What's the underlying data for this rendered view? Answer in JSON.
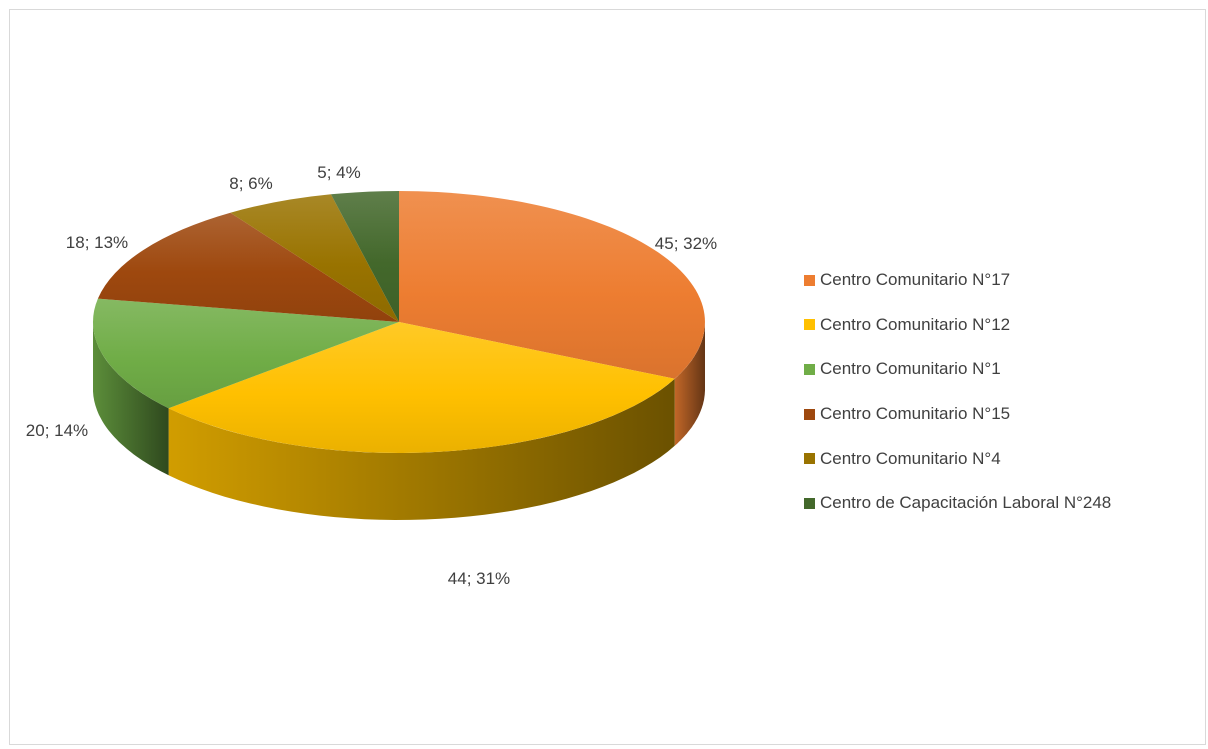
{
  "chart_data": {
    "type": "pie",
    "style": "3d",
    "title": "",
    "legend_position": "right",
    "categories": [
      "Centro Comunitario N°17",
      "Centro Comunitario N°12",
      "Centro Comunitario N°1",
      "Centro Comunitario N°15",
      "Centro Comunitario N°4",
      "Centro de Capacitación Laboral N°248"
    ],
    "values": [
      45,
      44,
      20,
      18,
      8,
      5
    ],
    "percentages": [
      "32%",
      "31%",
      "14%",
      "13%",
      "6%",
      "4%"
    ],
    "data_labels": [
      "45; 32%",
      "44; 31%",
      "20; 14%",
      "18; 13%",
      "8; 6%",
      "5; 4%"
    ],
    "colors": [
      "#ED7D31",
      "#FFC000",
      "#70AD47",
      "#9E480E",
      "#997300",
      "#43682B"
    ]
  }
}
